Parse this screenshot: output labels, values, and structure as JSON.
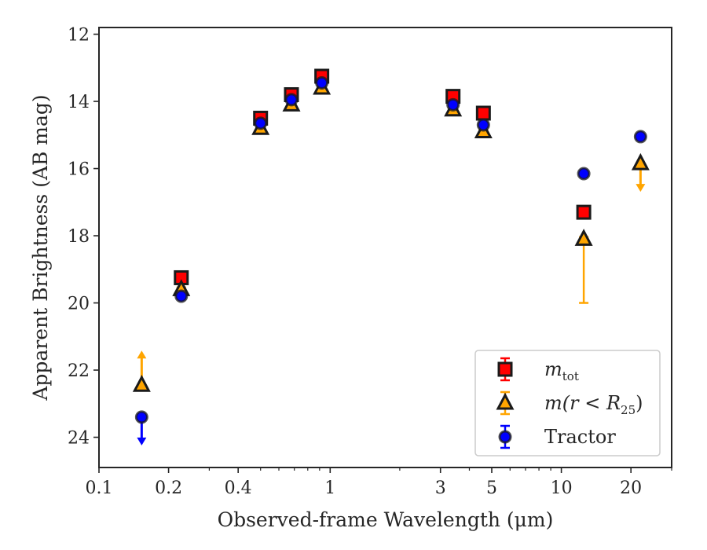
{
  "chart_data": {
    "type": "scatter",
    "xlabel": "Observed-frame Wavelength (μm)",
    "ylabel": "Apparent Brightness (AB mag)",
    "xscale": "log",
    "xlim": [
      0.1,
      30
    ],
    "ylim": [
      24.9,
      11.8
    ],
    "y_inverted": true,
    "x_ticks": [
      0.1,
      0.2,
      0.4,
      1,
      3,
      5,
      10,
      20
    ],
    "x_tick_labels": [
      "0.1",
      "0.2",
      "0.4",
      "1",
      "3",
      "5",
      "10",
      "20"
    ],
    "y_ticks": [
      12,
      14,
      16,
      18,
      20,
      22,
      24
    ],
    "y_tick_labels": [
      "12",
      "14",
      "16",
      "18",
      "20",
      "22",
      "24"
    ],
    "grid": false,
    "legend_position": "lower-right",
    "series": [
      {
        "name": "m_tot",
        "legend_main": "m",
        "legend_sub": "tot",
        "marker": "square",
        "color": "#ff0000",
        "points": [
          {
            "x": 0.227,
            "y": 19.25,
            "err": 0.1
          },
          {
            "x": 0.5,
            "y": 14.5,
            "err": 0.06
          },
          {
            "x": 0.68,
            "y": 13.8,
            "err": 0.06
          },
          {
            "x": 0.92,
            "y": 13.25,
            "err": 0.06
          },
          {
            "x": 3.4,
            "y": 13.85,
            "err": 0.06
          },
          {
            "x": 4.6,
            "y": 14.35,
            "err": 0.06
          },
          {
            "x": 12.5,
            "y": 17.3,
            "err": 0.06
          }
        ]
      },
      {
        "name": "m(r<R25)",
        "legend_main": "m(r < R",
        "legend_sub": "25",
        "legend_tail": ")",
        "marker": "triangle",
        "color": "#ffa500",
        "points": [
          {
            "x": 0.153,
            "y": 22.45,
            "upper_limit": true
          },
          {
            "x": 0.227,
            "y": 19.6,
            "err": 0.06
          },
          {
            "x": 0.5,
            "y": 14.8,
            "err": 0.06
          },
          {
            "x": 0.68,
            "y": 14.1,
            "err": 0.06
          },
          {
            "x": 0.92,
            "y": 13.6,
            "err": 0.06
          },
          {
            "x": 3.4,
            "y": 14.25,
            "err": 0.06
          },
          {
            "x": 4.6,
            "y": 14.9,
            "err": 0.06
          },
          {
            "x": 12.5,
            "y": 18.1,
            "err_low": 1.9,
            "err_high": 0.06
          },
          {
            "x": 22.0,
            "y": 15.85,
            "lower_limit_arrow": true
          }
        ]
      },
      {
        "name": "Tractor",
        "marker": "circle",
        "color": "#0000ff",
        "points": [
          {
            "x": 0.153,
            "y": 23.4,
            "lower_limit_arrow": true
          },
          {
            "x": 0.227,
            "y": 19.8,
            "err": 0.06
          },
          {
            "x": 0.5,
            "y": 14.65,
            "err": 0.06
          },
          {
            "x": 0.68,
            "y": 13.95,
            "err": 0.06
          },
          {
            "x": 0.92,
            "y": 13.45,
            "err": 0.06
          },
          {
            "x": 3.4,
            "y": 14.1,
            "err": 0.06
          },
          {
            "x": 4.6,
            "y": 14.7,
            "err": 0.06
          },
          {
            "x": 12.5,
            "y": 16.15,
            "err": 0.06
          },
          {
            "x": 22.0,
            "y": 15.05,
            "err": 0.06
          }
        ]
      }
    ],
    "legend_entries": [
      "m_tot",
      "m(r<R25)",
      "Tractor"
    ]
  },
  "colors": {
    "axis": "#262626",
    "legend_border": "#cccccc",
    "marker_edge": "#1a1a1a"
  }
}
